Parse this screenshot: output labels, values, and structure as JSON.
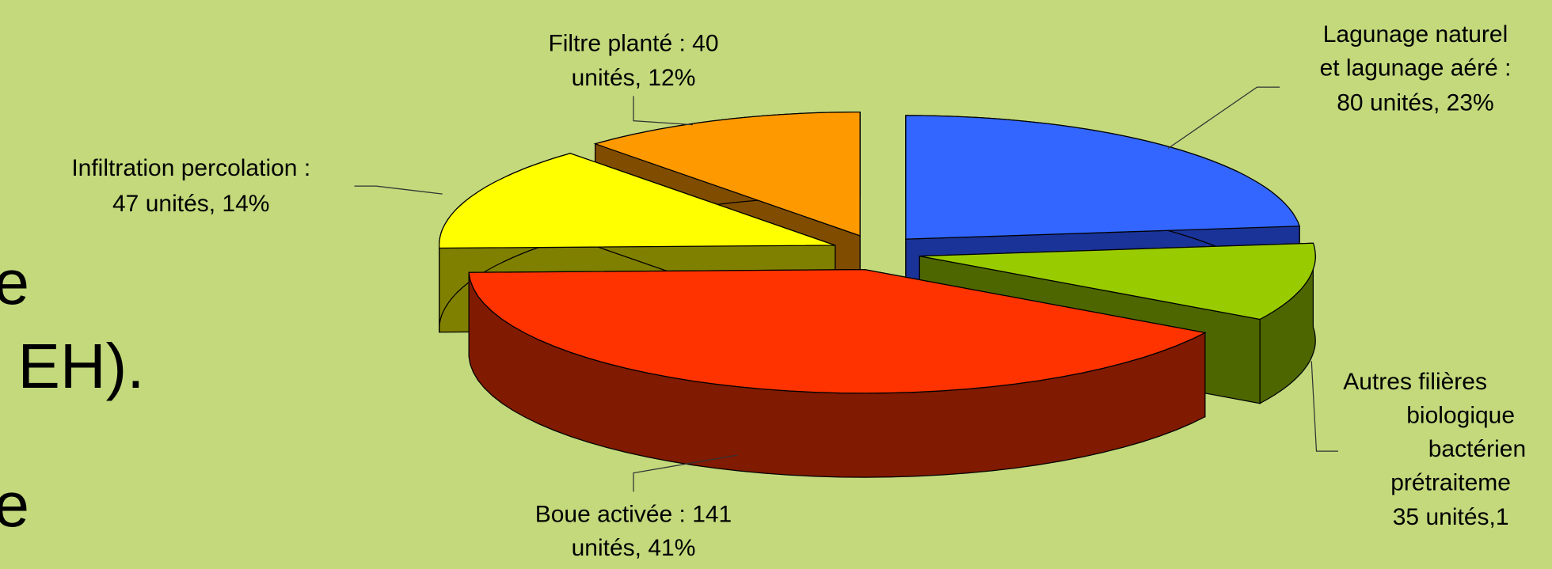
{
  "chart_data": {
    "type": "pie",
    "values": [
      80,
      35,
      141,
      47,
      40
    ],
    "labels": [
      [
        "Lagunage naturel",
        "et lagunage aéré :",
        "80 unités, 23%"
      ],
      [
        "Autres filières",
        "biologique",
        "bactérien",
        "prétraiteme",
        "35 unités,1"
      ],
      [
        "Boue activée : 141",
        "unités, 41%"
      ],
      [
        "Infiltration percolation :",
        "47 unités, 14%"
      ],
      [
        "Filtre planté : 40",
        "unités, 12%"
      ]
    ],
    "colors": [
      "#3366ff",
      "#99cc00",
      "#ff3300",
      "#ffff00",
      "#ff9900"
    ],
    "side_colors": [
      "#1a3399",
      "#4d6600",
      "#801a00",
      "#808000",
      "#804d00"
    ]
  },
  "background_text": [
    "e",
    "EH).",
    "e"
  ]
}
